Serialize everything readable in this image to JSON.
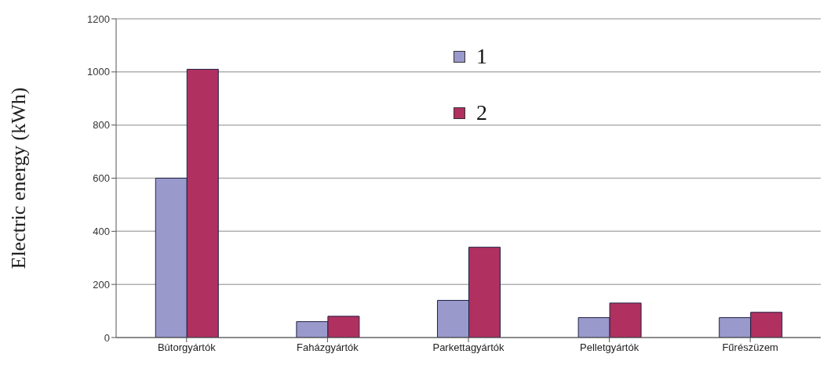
{
  "chart_data": {
    "type": "bar",
    "ylabel": "Electric energy (kWh)",
    "categories": [
      "Bútorgyártók",
      "Faházgyártók",
      "Parkettagyártók",
      "Pelletgyártók",
      "Fűrészüzem"
    ],
    "series": [
      {
        "name": "1",
        "color": "#9999cc",
        "values": [
          600,
          60,
          140,
          75,
          75
        ]
      },
      {
        "name": "2",
        "color": "#b03060",
        "values": [
          1010,
          80,
          340,
          130,
          95
        ]
      }
    ],
    "ylim": [
      0,
      1200
    ],
    "yticks": [
      0,
      200,
      400,
      600,
      800,
      1000,
      1200
    ],
    "grid": "y",
    "legend": "top"
  }
}
